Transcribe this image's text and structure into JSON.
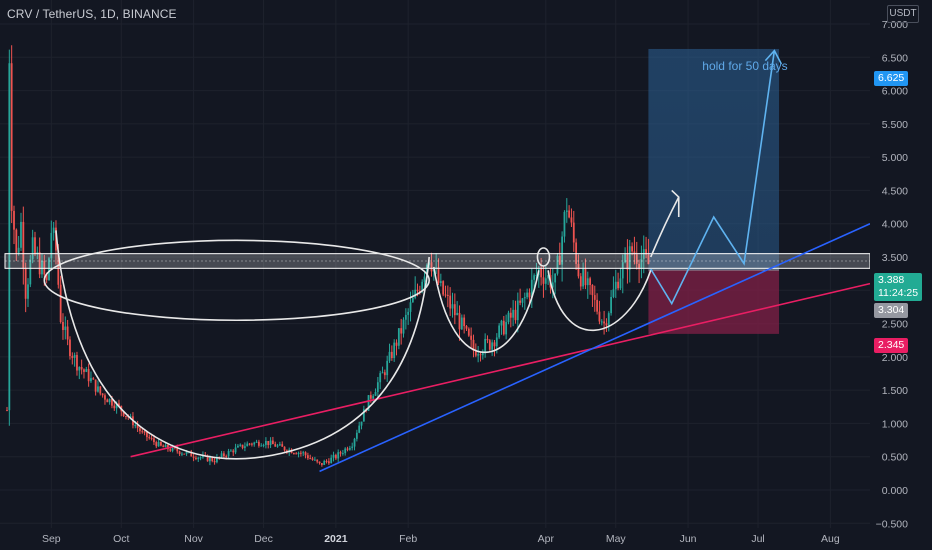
{
  "header": {
    "title": "CRV / TetherUS, 1D, BINANCE",
    "unit": "USDT"
  },
  "chart_data": {
    "type": "candlestick",
    "symbol": "CRV / TetherUS",
    "interval": "1D",
    "exchange": "BINANCE",
    "y_axis": {
      "ticks": [
        "7.000",
        "6.500",
        "6.000",
        "5.500",
        "5.000",
        "4.500",
        "4.000",
        "3.500",
        "3.000",
        "2.500",
        "2.000",
        "1.500",
        "1.000",
        "0.500",
        "0.000",
        "−0.500"
      ],
      "tick_values": [
        7.0,
        6.5,
        6.0,
        5.5,
        5.0,
        4.5,
        4.0,
        3.5,
        3.0,
        2.5,
        2.0,
        1.5,
        1.0,
        0.5,
        0.0,
        -0.5
      ],
      "range": [
        -0.55,
        7.3
      ]
    },
    "x_axis": {
      "labels": [
        "Sep",
        "Oct",
        "Nov",
        "Dec",
        "2021",
        "Feb",
        "Apr",
        "May",
        "Jun",
        "Jul",
        "Aug"
      ],
      "positions": [
        "2020-09-01",
        "2020-10-01",
        "2020-11-01",
        "2020-12-01",
        "2021-01-01",
        "2021-02-01",
        "2021-04-01",
        "2021-05-01",
        "2021-06-01",
        "2021-07-01",
        "2021-08-01"
      ],
      "range": [
        "2020-08-10",
        "2021-08-18"
      ]
    },
    "price_labels": {
      "target": "6.625",
      "last": "3.388",
      "countdown": "11:24:25",
      "entry": "3.304",
      "stop": "2.345"
    },
    "levels": {
      "target": 6.625,
      "entry": 3.304,
      "stop": 2.345,
      "last": 3.388
    },
    "annotation": "hold for 50 days",
    "position_tool": {
      "start": "2021-05-15",
      "end": "2021-07-10"
    },
    "resistance_zone": {
      "low": 3.33,
      "high": 3.55
    },
    "trendlines": [
      {
        "name": "pink",
        "color": "#e91e63",
        "from": [
          "2020-10-05",
          0.5
        ],
        "to": [
          "2021-08-18",
          3.1
        ]
      },
      {
        "name": "blue",
        "color": "#2962ff",
        "from": [
          "2020-12-25",
          0.28
        ],
        "to": [
          "2021-08-18",
          4.0
        ]
      }
    ],
    "candle_path": [
      [
        "2020-08-13",
        1.2
      ],
      [
        "2020-08-14",
        6.6
      ],
      [
        "2020-08-15",
        4.4
      ],
      [
        "2020-08-17",
        3.5
      ],
      [
        "2020-08-19",
        4.0
      ],
      [
        "2020-08-21",
        3.0
      ],
      [
        "2020-08-24",
        3.6
      ],
      [
        "2020-08-27",
        3.4
      ],
      [
        "2020-08-30",
        3.1
      ],
      [
        "2020-09-01",
        3.9
      ],
      [
        "2020-09-03",
        3.6
      ],
      [
        "2020-09-05",
        2.6
      ],
      [
        "2020-09-08",
        2.2
      ],
      [
        "2020-09-12",
        1.9
      ],
      [
        "2020-09-17",
        1.7
      ],
      [
        "2020-09-22",
        1.45
      ],
      [
        "2020-09-28",
        1.3
      ],
      [
        "2020-10-04",
        1.1
      ],
      [
        "2020-10-10",
        0.85
      ],
      [
        "2020-10-18",
        0.65
      ],
      [
        "2020-10-26",
        0.58
      ],
      [
        "2020-11-03",
        0.5
      ],
      [
        "2020-11-10",
        0.45
      ],
      [
        "2020-11-18",
        0.6
      ],
      [
        "2020-11-25",
        0.7
      ],
      [
        "2020-12-02",
        0.72
      ],
      [
        "2020-12-10",
        0.62
      ],
      [
        "2020-12-18",
        0.55
      ],
      [
        "2020-12-25",
        0.38
      ],
      [
        "2021-01-01",
        0.5
      ],
      [
        "2021-01-08",
        0.7
      ],
      [
        "2021-01-15",
        1.35
      ],
      [
        "2021-01-22",
        1.8
      ],
      [
        "2021-01-29",
        2.4
      ],
      [
        "2021-02-05",
        3.0
      ],
      [
        "2021-02-10",
        3.55
      ],
      [
        "2021-02-15",
        3.0
      ],
      [
        "2021-02-22",
        2.6
      ],
      [
        "2021-03-01",
        2.1
      ],
      [
        "2021-03-08",
        2.2
      ],
      [
        "2021-03-15",
        2.5
      ],
      [
        "2021-03-22",
        2.8
      ],
      [
        "2021-03-29",
        3.3
      ],
      [
        "2021-04-05",
        3.1
      ],
      [
        "2021-04-10",
        4.3
      ],
      [
        "2021-04-15",
        3.3
      ],
      [
        "2021-04-22",
        2.8
      ],
      [
        "2021-04-26",
        2.5
      ],
      [
        "2021-05-02",
        3.2
      ],
      [
        "2021-05-08",
        3.6
      ],
      [
        "2021-05-15",
        3.39
      ]
    ],
    "bull_color": "#26a69a",
    "bear_color": "#ef5350"
  }
}
